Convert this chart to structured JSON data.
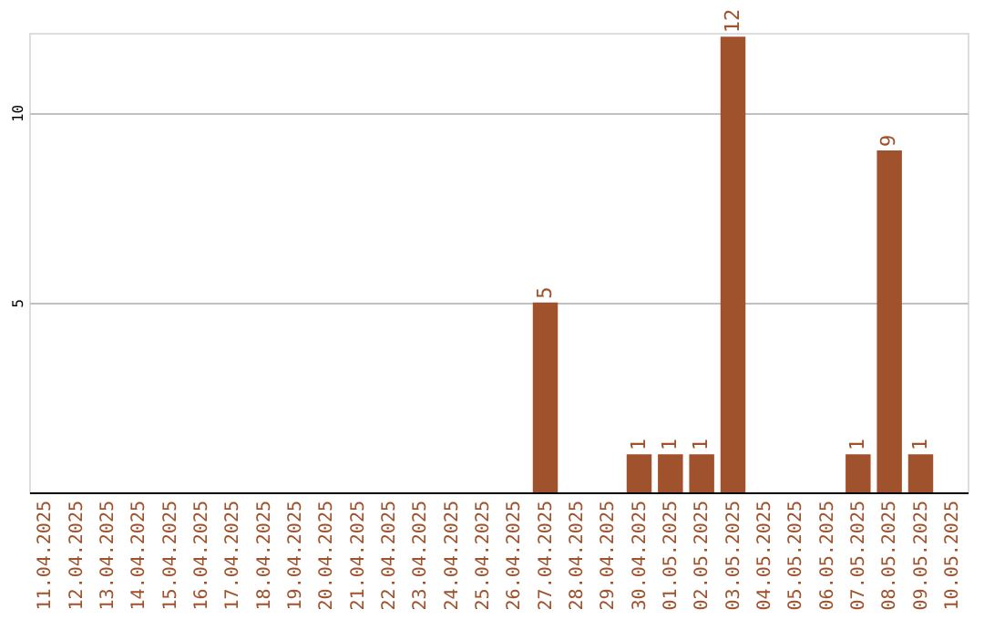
{
  "chart_data": {
    "type": "bar",
    "categories": [
      "11.04.2025",
      "12.04.2025",
      "13.04.2025",
      "14.04.2025",
      "15.04.2025",
      "16.04.2025",
      "17.04.2025",
      "18.04.2025",
      "19.04.2025",
      "20.04.2025",
      "21.04.2025",
      "22.04.2025",
      "23.04.2025",
      "24.04.2025",
      "25.04.2025",
      "26.04.2025",
      "27.04.2025",
      "28.04.2025",
      "29.04.2025",
      "30.04.2025",
      "01.05.2025",
      "02.05.2025",
      "03.05.2025",
      "04.05.2025",
      "05.05.2025",
      "06.05.2025",
      "07.05.2025",
      "08.05.2025",
      "09.05.2025",
      "10.05.2025"
    ],
    "values": [
      null,
      null,
      null,
      null,
      null,
      null,
      null,
      null,
      null,
      null,
      null,
      null,
      null,
      null,
      null,
      null,
      5,
      null,
      null,
      1,
      1,
      1,
      12,
      null,
      null,
      null,
      1,
      9,
      1,
      null
    ],
    "color": "#a0522d",
    "ylim": [
      0,
      12.1
    ],
    "yticks": [
      5,
      10
    ],
    "grid": "y",
    "data_labels": true
  }
}
